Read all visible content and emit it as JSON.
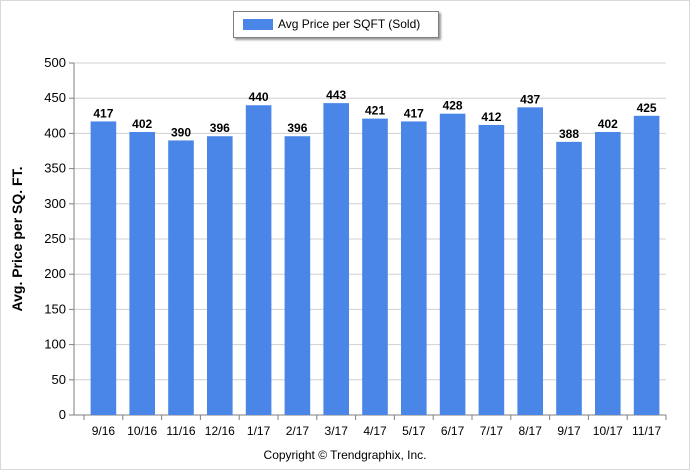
{
  "legend": {
    "label": "Avg Price per SQFT (Sold)"
  },
  "copyright": "Copyright © Trendgraphix, Inc.",
  "colors": {
    "bar": "#4a86e8",
    "grid": "#d0d0d0",
    "axis": "#7f7f7f"
  },
  "chart_data": {
    "type": "bar",
    "title": "",
    "xlabel": "",
    "ylabel": "Avg. Price per SQ. FT.",
    "ylim": [
      0,
      500
    ],
    "yticks": [
      0,
      50,
      100,
      150,
      200,
      250,
      300,
      350,
      400,
      450,
      500
    ],
    "grid": true,
    "legend_position": "top-center",
    "categories": [
      "9/16",
      "10/16",
      "11/16",
      "12/16",
      "1/17",
      "2/17",
      "3/17",
      "4/17",
      "5/17",
      "6/17",
      "7/17",
      "8/17",
      "9/17",
      "10/17",
      "11/17"
    ],
    "series": [
      {
        "name": "Avg Price per SQFT (Sold)",
        "values": [
          417,
          402,
          390,
          396,
          440,
          396,
          443,
          421,
          417,
          428,
          412,
          437,
          388,
          402,
          425
        ]
      }
    ]
  }
}
